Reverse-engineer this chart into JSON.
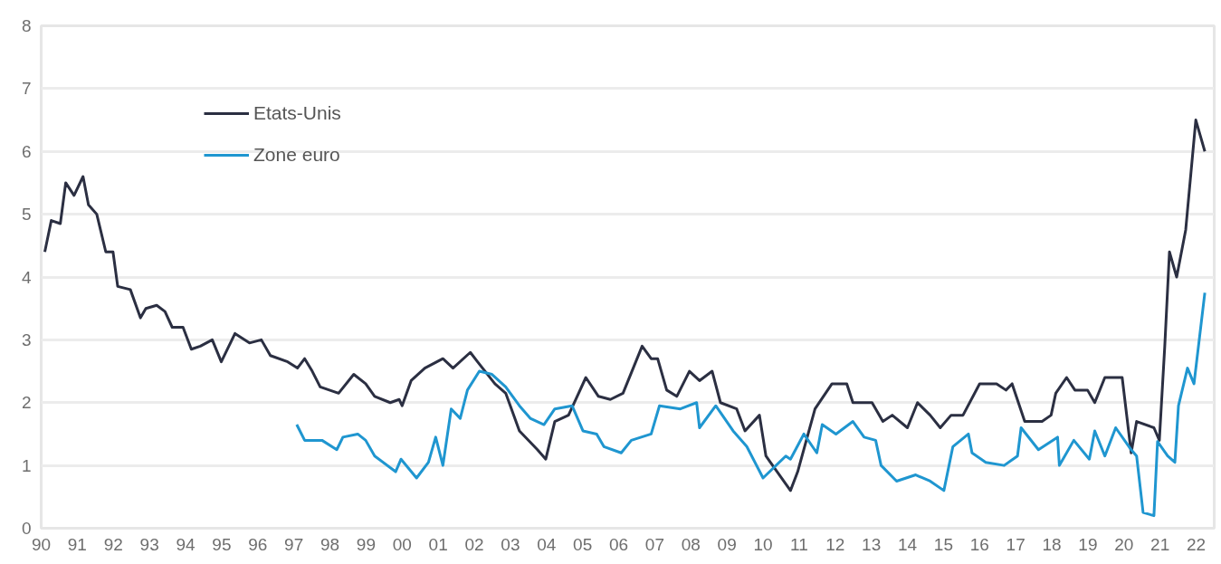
{
  "chart_data": {
    "type": "line",
    "xlim": [
      1990,
      2022.5
    ],
    "xticks": [
      {
        "value": 1990,
        "label": "90"
      },
      {
        "value": 1991,
        "label": "91"
      },
      {
        "value": 1992,
        "label": "92"
      },
      {
        "value": 1993,
        "label": "93"
      },
      {
        "value": 1994,
        "label": "94"
      },
      {
        "value": 1995,
        "label": "95"
      },
      {
        "value": 1996,
        "label": "96"
      },
      {
        "value": 1997,
        "label": "97"
      },
      {
        "value": 1998,
        "label": "98"
      },
      {
        "value": 1999,
        "label": "99"
      },
      {
        "value": 2000,
        "label": "00"
      },
      {
        "value": 2001,
        "label": "01"
      },
      {
        "value": 2002,
        "label": "02"
      },
      {
        "value": 2003,
        "label": "03"
      },
      {
        "value": 2004,
        "label": "04"
      },
      {
        "value": 2005,
        "label": "05"
      },
      {
        "value": 2006,
        "label": "06"
      },
      {
        "value": 2007,
        "label": "07"
      },
      {
        "value": 2008,
        "label": "08"
      },
      {
        "value": 2009,
        "label": "09"
      },
      {
        "value": 2010,
        "label": "10"
      },
      {
        "value": 2011,
        "label": "11"
      },
      {
        "value": 2012,
        "label": "12"
      },
      {
        "value": 2013,
        "label": "13"
      },
      {
        "value": 2014,
        "label": "14"
      },
      {
        "value": 2015,
        "label": "15"
      },
      {
        "value": 2016,
        "label": "16"
      },
      {
        "value": 2017,
        "label": "17"
      },
      {
        "value": 2018,
        "label": "18"
      },
      {
        "value": 2019,
        "label": "19"
      },
      {
        "value": 2020,
        "label": "20"
      },
      {
        "value": 2021,
        "label": "21"
      },
      {
        "value": 2022,
        "label": "22"
      }
    ],
    "ylim": [
      0,
      8
    ],
    "yticks": [
      0,
      1,
      2,
      3,
      4,
      5,
      6,
      7,
      8
    ],
    "grid": "y",
    "legend": "top left",
    "line_style": "solid",
    "series": [
      {
        "name": "Etats-Unis",
        "color": "#2b2f42",
        "x": [
          1990.1,
          1990.28,
          1990.53,
          1990.68,
          1990.91,
          1991.16,
          1991.31,
          1991.54,
          1991.79,
          1991.99,
          1992.12,
          1992.47,
          1992.75,
          1992.9,
          1993.2,
          1993.43,
          1993.63,
          1993.93,
          1994.16,
          1994.41,
          1994.74,
          1994.99,
          1995.37,
          1995.77,
          1996.1,
          1996.35,
          1996.83,
          1997.1,
          1997.3,
          1997.51,
          1997.73,
          1998.24,
          1998.66,
          1998.99,
          1999.24,
          1999.67,
          1999.92,
          2000.0,
          2000.25,
          2000.63,
          2001.13,
          2001.41,
          2001.89,
          2002.09,
          2002.57,
          2002.87,
          2003.25,
          2003.75,
          2003.98,
          2004.23,
          2004.61,
          2004.81,
          2005.09,
          2005.44,
          2005.77,
          2006.12,
          2006.65,
          2006.9,
          2007.08,
          2007.33,
          2007.61,
          2007.96,
          2008.24,
          2008.59,
          2008.82,
          2009.27,
          2009.5,
          2009.9,
          2010.08,
          2010.76,
          2010.96,
          2011.44,
          2011.91,
          2012.32,
          2012.49,
          2013.02,
          2013.32,
          2013.58,
          2014.0,
          2014.28,
          2014.63,
          2014.91,
          2015.21,
          2015.54,
          2016.0,
          2016.47,
          2016.73,
          2016.9,
          2017.25,
          2017.73,
          2017.98,
          2018.11,
          2018.41,
          2018.64,
          2018.99,
          2019.19,
          2019.47,
          2019.95,
          2020.2,
          2020.35,
          2020.83,
          2020.98,
          2021.13,
          2021.26,
          2021.46,
          2021.71,
          2021.99,
          2022.24
        ],
        "values": [
          4.4,
          4.9,
          4.85,
          5.5,
          5.3,
          5.6,
          5.15,
          5.0,
          4.4,
          4.4,
          3.85,
          3.8,
          3.35,
          3.5,
          3.55,
          3.45,
          3.2,
          3.2,
          2.85,
          2.9,
          3.0,
          2.65,
          3.1,
          2.95,
          3.0,
          2.75,
          2.65,
          2.55,
          2.7,
          2.5,
          2.25,
          2.15,
          2.45,
          2.3,
          2.1,
          2.0,
          2.05,
          1.95,
          2.35,
          2.55,
          2.7,
          2.55,
          2.8,
          2.65,
          2.3,
          2.15,
          1.55,
          1.25,
          1.1,
          1.7,
          1.8,
          2.05,
          2.4,
          2.1,
          2.05,
          2.15,
          2.9,
          2.7,
          2.7,
          2.2,
          2.1,
          2.5,
          2.35,
          2.5,
          2.0,
          1.9,
          1.55,
          1.8,
          1.15,
          0.6,
          0.9,
          1.9,
          2.3,
          2.3,
          2.0,
          2.0,
          1.7,
          1.8,
          1.6,
          2.0,
          1.8,
          1.6,
          1.8,
          1.8,
          2.3,
          2.3,
          2.2,
          2.3,
          1.7,
          1.7,
          1.8,
          2.15,
          2.4,
          2.2,
          2.2,
          2.0,
          2.4,
          2.4,
          1.2,
          1.7,
          1.6,
          1.4,
          2.9,
          4.4,
          4.0,
          4.75,
          6.5,
          6.0
        ]
      },
      {
        "name": "Zone euro",
        "color": "#1f96d0",
        "x": [
          1997.08,
          1997.3,
          1997.78,
          1998.19,
          1998.36,
          1998.77,
          1998.99,
          1999.24,
          1999.82,
          1999.97,
          2000.4,
          2000.73,
          2000.93,
          2001.13,
          2001.36,
          2001.61,
          2001.81,
          2002.14,
          2002.49,
          2002.87,
          2003.25,
          2003.55,
          2003.93,
          2004.23,
          2004.71,
          2005.01,
          2005.39,
          2005.59,
          2006.07,
          2006.35,
          2006.9,
          2007.13,
          2007.71,
          2008.16,
          2008.24,
          2008.69,
          2009.17,
          2009.55,
          2010.0,
          2010.63,
          2010.76,
          2011.13,
          2011.49,
          2011.64,
          2012.02,
          2012.49,
          2012.8,
          2013.12,
          2013.27,
          2013.7,
          2014.23,
          2014.63,
          2015.01,
          2015.26,
          2015.69,
          2015.79,
          2016.17,
          2016.68,
          2017.05,
          2017.15,
          2017.63,
          2018.16,
          2018.21,
          2018.61,
          2019.04,
          2019.19,
          2019.47,
          2019.77,
          2020.2,
          2020.35,
          2020.53,
          2020.83,
          2020.93,
          2021.21,
          2021.41,
          2021.51,
          2021.76,
          2021.94,
          2022.24
        ],
        "values": [
          1.65,
          1.4,
          1.4,
          1.25,
          1.45,
          1.5,
          1.4,
          1.15,
          0.9,
          1.1,
          0.8,
          1.05,
          1.45,
          1.0,
          1.9,
          1.75,
          2.2,
          2.5,
          2.45,
          2.25,
          1.95,
          1.75,
          1.65,
          1.9,
          1.95,
          1.55,
          1.5,
          1.3,
          1.2,
          1.4,
          1.5,
          1.95,
          1.9,
          2.0,
          1.6,
          1.95,
          1.55,
          1.3,
          0.8,
          1.15,
          1.1,
          1.5,
          1.2,
          1.65,
          1.5,
          1.7,
          1.45,
          1.4,
          1.0,
          0.75,
          0.85,
          0.75,
          0.6,
          1.3,
          1.5,
          1.2,
          1.05,
          1.0,
          1.15,
          1.6,
          1.25,
          1.45,
          1.0,
          1.4,
          1.1,
          1.55,
          1.15,
          1.6,
          1.25,
          1.15,
          0.25,
          0.2,
          1.38,
          1.15,
          1.05,
          1.95,
          2.55,
          2.3,
          3.75
        ]
      }
    ]
  }
}
